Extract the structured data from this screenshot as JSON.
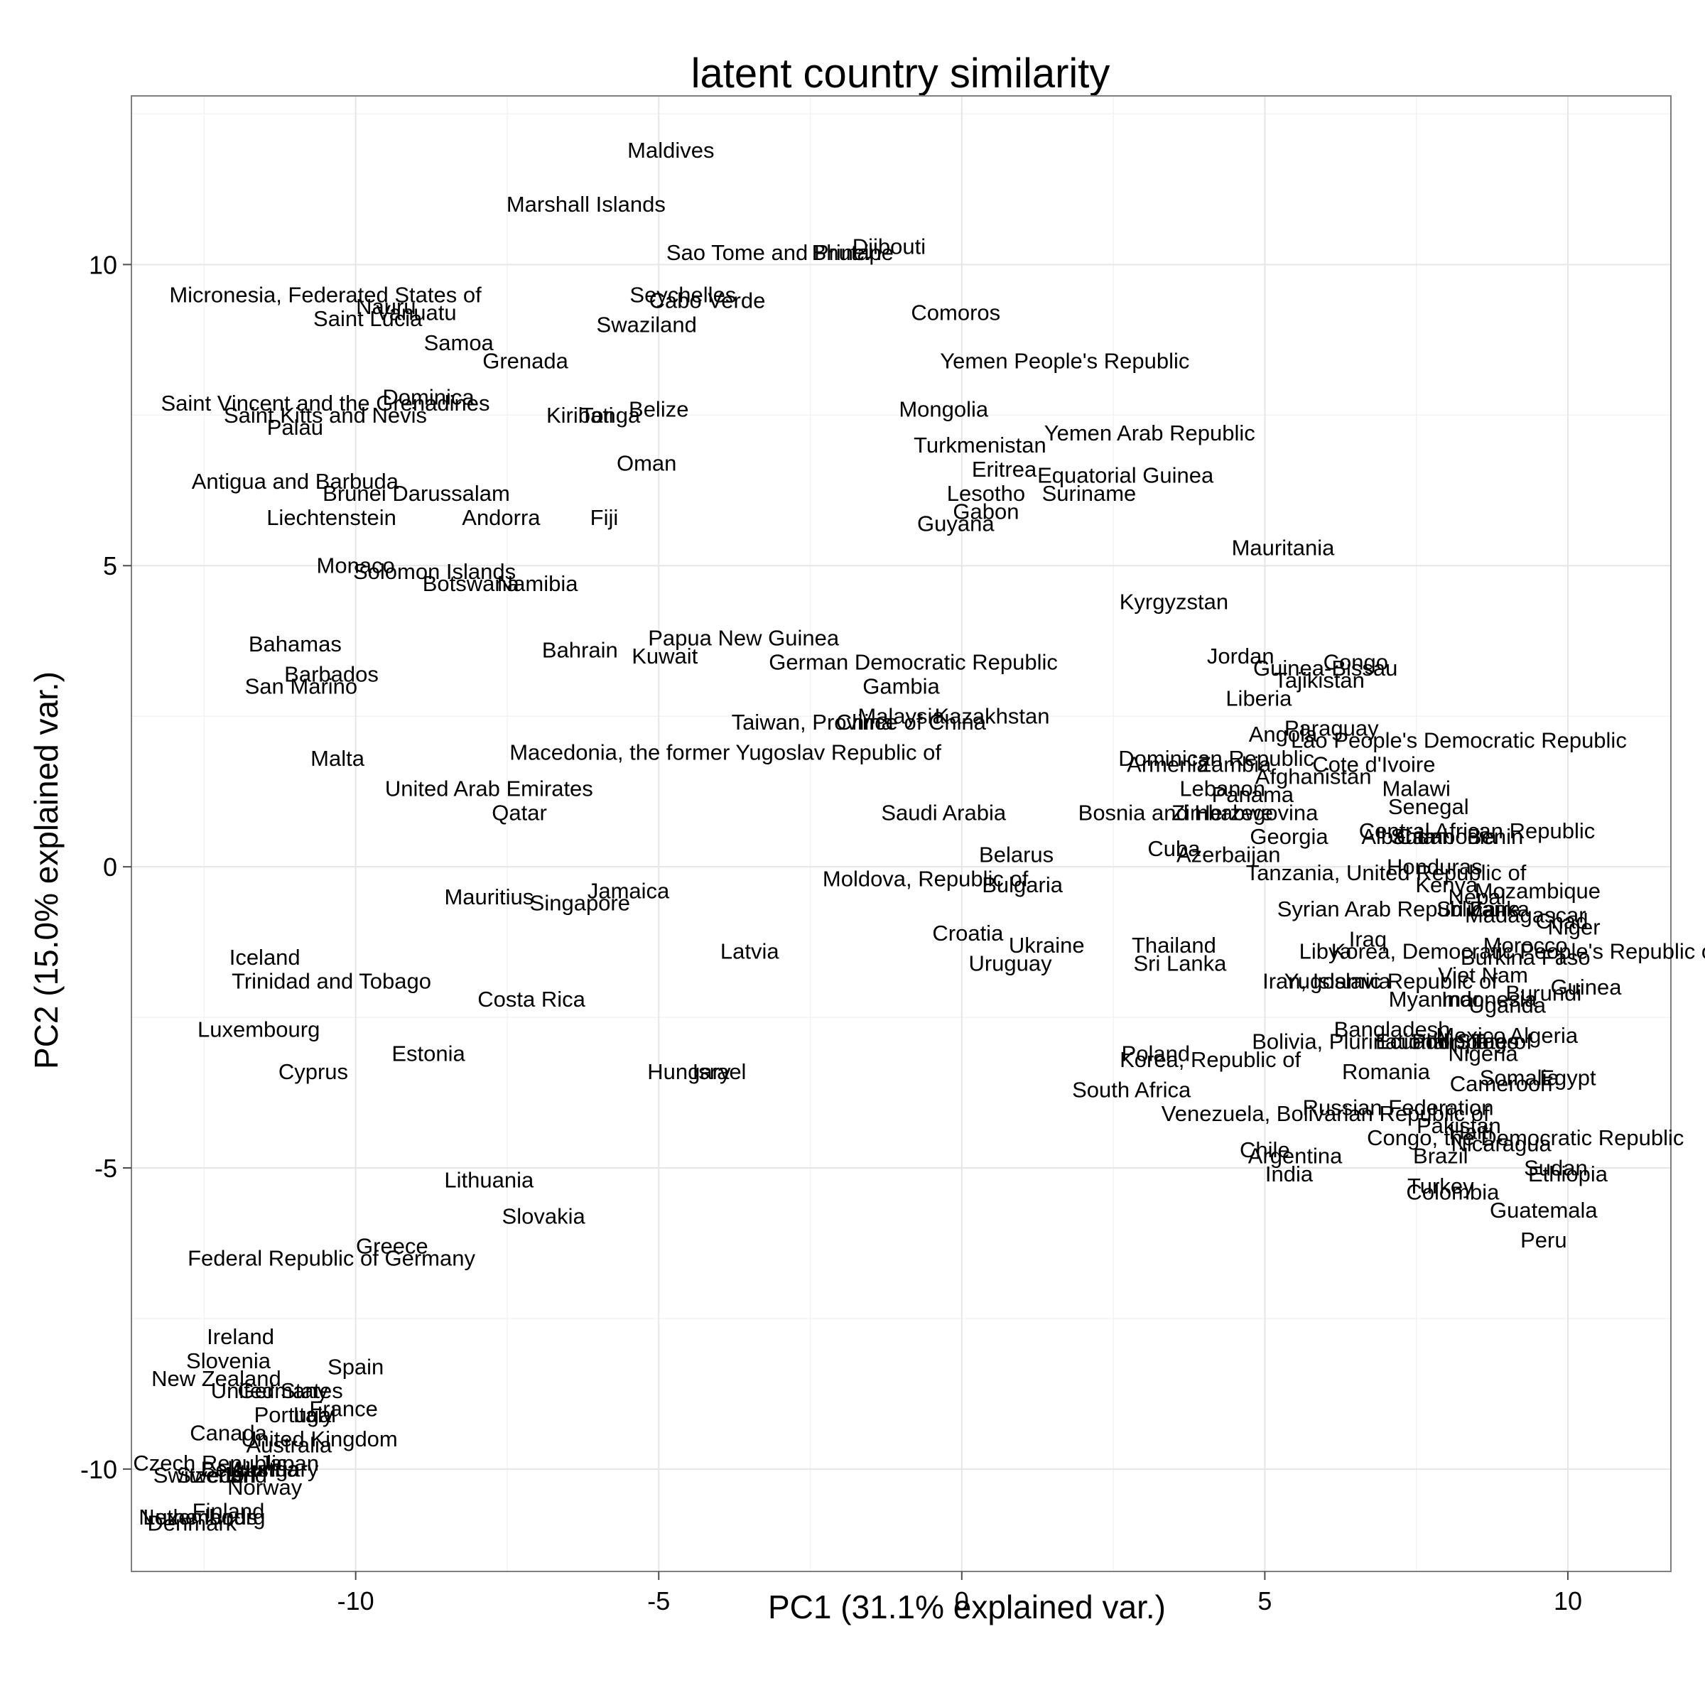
{
  "chart_data": {
    "type": "scatter",
    "title": "latent country similarity",
    "xlabel": "PC1 (31.1% explained var.)",
    "ylabel": "PC2 (15.0% explained var.)",
    "xlim": [
      -13.7,
      11.7
    ],
    "ylim": [
      -11.7,
      12.8
    ],
    "x_ticks": [
      -10,
      -5,
      0,
      5,
      10
    ],
    "y_ticks": [
      10,
      5,
      0,
      -5,
      -10
    ],
    "x_tick_labels": [
      "-10",
      "-5",
      "0",
      "5",
      "10"
    ],
    "y_tick_labels": [
      "10",
      "5",
      "0",
      "-5",
      "-10"
    ],
    "grid": true,
    "legend": "none",
    "colors": {
      "panel_border": "#7f7f7f",
      "grid_major": "#e6e6e6",
      "grid_minor": "#f3f3f3",
      "text": "#000000",
      "tick": "#4d4d4d"
    },
    "points": [
      {
        "label": "Maldives",
        "x": -4.8,
        "y": 11.9
      },
      {
        "label": "Marshall Islands",
        "x": -6.2,
        "y": 11.0
      },
      {
        "label": "Sao Tome and Principe",
        "x": -3.0,
        "y": 10.2
      },
      {
        "label": "Djibouti",
        "x": -1.2,
        "y": 10.3
      },
      {
        "label": "Bhutan",
        "x": -1.9,
        "y": 10.2
      },
      {
        "label": "Micronesia, Federated States of",
        "x": -10.5,
        "y": 9.5
      },
      {
        "label": "Nauru",
        "x": -9.5,
        "y": 9.3
      },
      {
        "label": "Vanuatu",
        "x": -9.0,
        "y": 9.2
      },
      {
        "label": "Saint Lucia",
        "x": -9.8,
        "y": 9.1
      },
      {
        "label": "Seychelles",
        "x": -4.6,
        "y": 9.5
      },
      {
        "label": "Cabo Verde",
        "x": -4.2,
        "y": 9.4
      },
      {
        "label": "Swaziland",
        "x": -5.2,
        "y": 9.0
      },
      {
        "label": "Comoros",
        "x": -0.1,
        "y": 9.2
      },
      {
        "label": "Samoa",
        "x": -8.3,
        "y": 8.7
      },
      {
        "label": "Grenada",
        "x": -7.2,
        "y": 8.4
      },
      {
        "label": "Yemen People's Republic",
        "x": 1.7,
        "y": 8.4
      },
      {
        "label": "Dominica",
        "x": -8.8,
        "y": 7.8
      },
      {
        "label": "Saint Vincent and the Grenadines",
        "x": -10.5,
        "y": 7.7
      },
      {
        "label": "Saint Kitts and Nevis",
        "x": -10.5,
        "y": 7.5
      },
      {
        "label": "Palau",
        "x": -11.0,
        "y": 7.3
      },
      {
        "label": "Kiribati",
        "x": -6.3,
        "y": 7.5
      },
      {
        "label": "Tonga",
        "x": -5.8,
        "y": 7.5
      },
      {
        "label": "Belize",
        "x": -5.0,
        "y": 7.6
      },
      {
        "label": "Mongolia",
        "x": -0.3,
        "y": 7.6
      },
      {
        "label": "Yemen Arab Republic",
        "x": 3.1,
        "y": 7.2
      },
      {
        "label": "Turkmenistan",
        "x": 0.3,
        "y": 7.0
      },
      {
        "label": "Oman",
        "x": -5.2,
        "y": 6.7
      },
      {
        "label": "Eritrea",
        "x": 0.7,
        "y": 6.6
      },
      {
        "label": "Equatorial Guinea",
        "x": 2.7,
        "y": 6.5
      },
      {
        "label": "Antigua and Barbuda",
        "x": -11.0,
        "y": 6.4
      },
      {
        "label": "Brunei Darussalam",
        "x": -9.0,
        "y": 6.2
      },
      {
        "label": "Lesotho",
        "x": 0.4,
        "y": 6.2
      },
      {
        "label": "Suriname",
        "x": 2.1,
        "y": 6.2
      },
      {
        "label": "Gabon",
        "x": 0.4,
        "y": 5.9
      },
      {
        "label": "Guyana",
        "x": -0.1,
        "y": 5.7
      },
      {
        "label": "Liechtenstein",
        "x": -10.4,
        "y": 5.8
      },
      {
        "label": "Andorra",
        "x": -7.6,
        "y": 5.8
      },
      {
        "label": "Fiji",
        "x": -5.9,
        "y": 5.8
      },
      {
        "label": "Mauritania",
        "x": 5.3,
        "y": 5.3
      },
      {
        "label": "Monaco",
        "x": -10.0,
        "y": 5.0
      },
      {
        "label": "Solomon Islands",
        "x": -8.7,
        "y": 4.9
      },
      {
        "label": "Botswana",
        "x": -8.1,
        "y": 4.7
      },
      {
        "label": "Namibia",
        "x": -7.0,
        "y": 4.7
      },
      {
        "label": "Kyrgyzstan",
        "x": 3.5,
        "y": 4.4
      },
      {
        "label": "Bahamas",
        "x": -11.0,
        "y": 3.7
      },
      {
        "label": "Papua New Guinea",
        "x": -3.6,
        "y": 3.8
      },
      {
        "label": "Bahrain",
        "x": -6.3,
        "y": 3.6
      },
      {
        "label": "Kuwait",
        "x": -4.9,
        "y": 3.5
      },
      {
        "label": "Jordan",
        "x": 4.6,
        "y": 3.5
      },
      {
        "label": "Congo",
        "x": 6.5,
        "y": 3.4
      },
      {
        "label": "Guinea-Bissau",
        "x": 6.0,
        "y": 3.3
      },
      {
        "label": "Barbados",
        "x": -10.4,
        "y": 3.2
      },
      {
        "label": "German Democratic Republic",
        "x": -0.8,
        "y": 3.4
      },
      {
        "label": "Tajikistan",
        "x": 5.9,
        "y": 3.1
      },
      {
        "label": "San Marino",
        "x": -10.9,
        "y": 3.0
      },
      {
        "label": "Gambia",
        "x": -1.0,
        "y": 3.0
      },
      {
        "label": "Liberia",
        "x": 4.9,
        "y": 2.8
      },
      {
        "label": "Malaysia",
        "x": -1.0,
        "y": 2.5
      },
      {
        "label": "Kazakhstan",
        "x": 0.5,
        "y": 2.5
      },
      {
        "label": "China",
        "x": -1.6,
        "y": 2.4
      },
      {
        "label": "Taiwan, Province of China",
        "x": -1.7,
        "y": 2.4
      },
      {
        "label": "Paraguay",
        "x": 6.1,
        "y": 2.3
      },
      {
        "label": "Angola",
        "x": 5.3,
        "y": 2.2
      },
      {
        "label": "Lao People's Democratic Republic",
        "x": 8.2,
        "y": 2.1
      },
      {
        "label": "Malta",
        "x": -10.3,
        "y": 1.8
      },
      {
        "label": "Macedonia, the former Yugoslav Republic of",
        "x": -3.9,
        "y": 1.9
      },
      {
        "label": "Dominican Republic",
        "x": 4.2,
        "y": 1.8
      },
      {
        "label": "Armenia",
        "x": 3.4,
        "y": 1.7
      },
      {
        "label": "Zambia",
        "x": 4.5,
        "y": 1.7
      },
      {
        "label": "Cote d'Ivoire",
        "x": 6.8,
        "y": 1.7
      },
      {
        "label": "Afghanistan",
        "x": 5.8,
        "y": 1.5
      },
      {
        "label": "United Arab Emirates",
        "x": -7.8,
        "y": 1.3
      },
      {
        "label": "Lebanon",
        "x": 4.3,
        "y": 1.3
      },
      {
        "label": "Panama",
        "x": 4.8,
        "y": 1.2
      },
      {
        "label": "Malawi",
        "x": 7.5,
        "y": 1.3
      },
      {
        "label": "Qatar",
        "x": -7.3,
        "y": 0.9
      },
      {
        "label": "Saudi Arabia",
        "x": -0.3,
        "y": 0.9
      },
      {
        "label": "Bosnia and Herzegovina",
        "x": 3.9,
        "y": 0.9
      },
      {
        "label": "Zimbabwe",
        "x": 4.3,
        "y": 0.9
      },
      {
        "label": "Senegal",
        "x": 7.7,
        "y": 1.0
      },
      {
        "label": "Central African Republic",
        "x": 8.5,
        "y": 0.6
      },
      {
        "label": "Georgia",
        "x": 5.4,
        "y": 0.5
      },
      {
        "label": "Albania",
        "x": 7.2,
        "y": 0.5
      },
      {
        "label": "Cambodia",
        "x": 8.0,
        "y": 0.5
      },
      {
        "label": "Sudan",
        "x": 7.6,
        "y": 0.5
      },
      {
        "label": "Benin",
        "x": 8.8,
        "y": 0.5
      },
      {
        "label": "Belarus",
        "x": 0.9,
        "y": 0.2
      },
      {
        "label": "Cuba",
        "x": 3.5,
        "y": 0.3
      },
      {
        "label": "Azerbaijan",
        "x": 4.4,
        "y": 0.2
      },
      {
        "label": "Honduras",
        "x": 7.8,
        "y": 0.0
      },
      {
        "label": "Tanzania, United Republic of",
        "x": 7.0,
        "y": -0.1
      },
      {
        "label": "Moldova, Republic of",
        "x": -0.6,
        "y": -0.2
      },
      {
        "label": "Bulgaria",
        "x": 1.0,
        "y": -0.3
      },
      {
        "label": "Kenya",
        "x": 8.0,
        "y": -0.3
      },
      {
        "label": "Mozambique",
        "x": 9.5,
        "y": -0.4
      },
      {
        "label": "Nepal",
        "x": 8.5,
        "y": -0.5
      },
      {
        "label": "Mauritius",
        "x": -7.8,
        "y": -0.5
      },
      {
        "label": "Jamaica",
        "x": -5.5,
        "y": -0.4
      },
      {
        "label": "Singapore",
        "x": -6.3,
        "y": -0.6
      },
      {
        "label": "Syrian Arab Republic",
        "x": 6.9,
        "y": -0.7
      },
      {
        "label": "Sri Lanka",
        "x": 8.6,
        "y": -0.7
      },
      {
        "label": "Zaire",
        "x": 8.8,
        "y": -0.7
      },
      {
        "label": "Madagascar",
        "x": 9.3,
        "y": -0.8
      },
      {
        "label": "Chad",
        "x": 9.9,
        "y": -0.9
      },
      {
        "label": "Niger",
        "x": 10.1,
        "y": -1.0
      },
      {
        "label": "Croatia",
        "x": 0.1,
        "y": -1.1
      },
      {
        "label": "Latvia",
        "x": -3.5,
        "y": -1.4
      },
      {
        "label": "Ukraine",
        "x": 1.4,
        "y": -1.3
      },
      {
        "label": "Thailand",
        "x": 3.5,
        "y": -1.3
      },
      {
        "label": "Iraq",
        "x": 6.7,
        "y": -1.2
      },
      {
        "label": "Korea, Democratic People's Republic of",
        "x": 9.3,
        "y": -1.4
      },
      {
        "label": "Libya",
        "x": 6.0,
        "y": -1.4
      },
      {
        "label": "Morocco",
        "x": 9.3,
        "y": -1.3
      },
      {
        "label": "Burkina Faso",
        "x": 9.3,
        "y": -1.5
      },
      {
        "label": "Uruguay",
        "x": 0.8,
        "y": -1.6
      },
      {
        "label": "Sri Lanka",
        "x": 3.6,
        "y": -1.6
      },
      {
        "label": "Iceland",
        "x": -11.5,
        "y": -1.5
      },
      {
        "label": "Trinidad and Tobago",
        "x": -10.4,
        "y": -1.9
      },
      {
        "label": "Yugoslavia",
        "x": 6.2,
        "y": -1.9
      },
      {
        "label": "Iran, Islamic Republic of",
        "x": 6.9,
        "y": -1.9
      },
      {
        "label": "Viet Nam",
        "x": 8.6,
        "y": -1.8
      },
      {
        "label": "Costa Rica",
        "x": -7.1,
        "y": -2.2
      },
      {
        "label": "Myanmar",
        "x": 7.8,
        "y": -2.2
      },
      {
        "label": "Indonesia",
        "x": 8.7,
        "y": -2.2
      },
      {
        "label": "Burundi",
        "x": 9.6,
        "y": -2.1
      },
      {
        "label": "Guinea",
        "x": 10.3,
        "y": -2.0
      },
      {
        "label": "Uganda",
        "x": 9.0,
        "y": -2.3
      },
      {
        "label": "Luxembourg",
        "x": -11.6,
        "y": -2.7
      },
      {
        "label": "Bangladesh",
        "x": 7.1,
        "y": -2.7
      },
      {
        "label": "Mexico",
        "x": 8.4,
        "y": -2.8
      },
      {
        "label": "Bolivia, Plurinational State of",
        "x": 7.1,
        "y": -2.9
      },
      {
        "label": "Ecuador",
        "x": 7.5,
        "y": -2.9
      },
      {
        "label": "Philippines",
        "x": 8.3,
        "y": -2.9
      },
      {
        "label": "Togo",
        "x": 8.8,
        "y": -2.9
      },
      {
        "label": "Algeria",
        "x": 9.6,
        "y": -2.8
      },
      {
        "label": "Nigeria",
        "x": 8.6,
        "y": -3.1
      },
      {
        "label": "Estonia",
        "x": -8.8,
        "y": -3.1
      },
      {
        "label": "Poland",
        "x": 3.2,
        "y": -3.1
      },
      {
        "label": "Korea, Republic of",
        "x": 4.1,
        "y": -3.2
      },
      {
        "label": "Cyprus",
        "x": -10.7,
        "y": -3.4
      },
      {
        "label": "Hungary",
        "x": -4.5,
        "y": -3.4
      },
      {
        "label": "Israel",
        "x": -4.0,
        "y": -3.4
      },
      {
        "label": "Romania",
        "x": 7.0,
        "y": -3.4
      },
      {
        "label": "Somalia",
        "x": 9.2,
        "y": -3.5
      },
      {
        "label": "Egypt",
        "x": 10.0,
        "y": -3.5
      },
      {
        "label": "Cameroon",
        "x": 8.9,
        "y": -3.6
      },
      {
        "label": "South Africa",
        "x": 2.8,
        "y": -3.7
      },
      {
        "label": "Russian Federation",
        "x": 7.2,
        "y": -4.0
      },
      {
        "label": "Venezuela, Bolivarian Republic of",
        "x": 6.0,
        "y": -4.1
      },
      {
        "label": "Pakistan",
        "x": 8.2,
        "y": -4.3
      },
      {
        "label": "Haiti",
        "x": 8.4,
        "y": -4.4
      },
      {
        "label": "Congo, the Democratic Republic",
        "x": 9.3,
        "y": -4.5
      },
      {
        "label": "Nicaragua",
        "x": 8.9,
        "y": -4.6
      },
      {
        "label": "Chile",
        "x": 5.0,
        "y": -4.7
      },
      {
        "label": "Argentina",
        "x": 5.5,
        "y": -4.8
      },
      {
        "label": "Brazil",
        "x": 7.9,
        "y": -4.8
      },
      {
        "label": "India",
        "x": 5.4,
        "y": -5.1
      },
      {
        "label": "Sudan",
        "x": 9.8,
        "y": -5.0
      },
      {
        "label": "Ethiopia",
        "x": 10.0,
        "y": -5.1
      },
      {
        "label": "Turkey",
        "x": 7.9,
        "y": -5.3
      },
      {
        "label": "Colombia",
        "x": 8.1,
        "y": -5.4
      },
      {
        "label": "Guatemala",
        "x": 9.6,
        "y": -5.7
      },
      {
        "label": "Peru",
        "x": 9.6,
        "y": -6.2
      },
      {
        "label": "Lithuania",
        "x": -7.8,
        "y": -5.2
      },
      {
        "label": "Slovakia",
        "x": -6.9,
        "y": -5.8
      },
      {
        "label": "Greece",
        "x": -9.4,
        "y": -6.3
      },
      {
        "label": "Federal Republic of Germany",
        "x": -10.4,
        "y": -6.5
      },
      {
        "label": "Ireland",
        "x": -11.9,
        "y": -7.8
      },
      {
        "label": "Slovenia",
        "x": -12.1,
        "y": -8.2
      },
      {
        "label": "Spain",
        "x": -10.0,
        "y": -8.3
      },
      {
        "label": "New Zealand",
        "x": -12.3,
        "y": -8.5
      },
      {
        "label": "United States",
        "x": -11.3,
        "y": -8.7
      },
      {
        "label": "Germany",
        "x": -11.2,
        "y": -8.7
      },
      {
        "label": "France",
        "x": -10.2,
        "y": -9.0
      },
      {
        "label": "Portugal",
        "x": -11.0,
        "y": -9.1
      },
      {
        "label": "Italy",
        "x": -10.7,
        "y": -9.1
      },
      {
        "label": "Canada",
        "x": -12.1,
        "y": -9.4
      },
      {
        "label": "United Kingdom",
        "x": -10.6,
        "y": -9.5
      },
      {
        "label": "Australia",
        "x": -11.1,
        "y": -9.6
      },
      {
        "label": "Czech Republic",
        "x": -12.4,
        "y": -9.9
      },
      {
        "label": "Japan",
        "x": -11.1,
        "y": -9.9
      },
      {
        "label": "Austria",
        "x": -11.5,
        "y": -10.0
      },
      {
        "label": "Belgium",
        "x": -11.9,
        "y": -10.0
      },
      {
        "label": "Switzerland",
        "x": -12.4,
        "y": -10.1
      },
      {
        "label": "Sweden",
        "x": -12.3,
        "y": -10.1
      },
      {
        "label": "Hungary",
        "x": -11.3,
        "y": -10.0
      },
      {
        "label": "Norway",
        "x": -11.5,
        "y": -10.3
      },
      {
        "label": "Finland",
        "x": -12.1,
        "y": -10.7
      },
      {
        "label": "Netherlands",
        "x": -12.6,
        "y": -10.8
      },
      {
        "label": "Luxembourg",
        "x": -12.5,
        "y": -10.8
      },
      {
        "label": "Denmark",
        "x": -12.7,
        "y": -10.9
      }
    ]
  }
}
